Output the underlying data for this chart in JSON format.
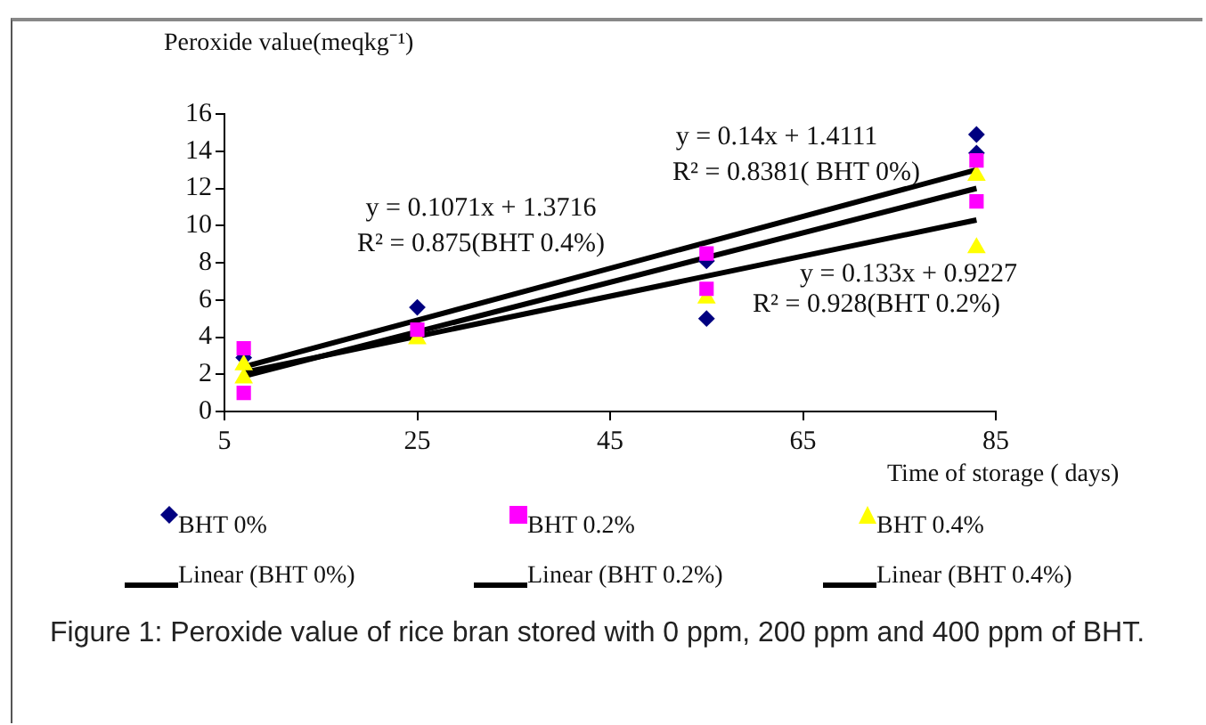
{
  "chart_data": {
    "type": "scatter",
    "xlabel": "Time of storage ( days)",
    "ylabel": "Peroxide value(meqkg⁻¹)",
    "xlim": [
      5,
      85
    ],
    "xticks": [
      5,
      25,
      45,
      65,
      85
    ],
    "ylim": [
      0,
      16
    ],
    "yticks": [
      0,
      2,
      4,
      6,
      8,
      10,
      12,
      14,
      16
    ],
    "grid": false,
    "legend": "bottom",
    "series": [
      {
        "name": "BHT 0%",
        "type": "scatter",
        "marker": "diamond",
        "color": "#000080",
        "x": [
          7,
          25,
          55,
          55,
          83,
          83
        ],
        "values": [
          2.9,
          5.6,
          8.1,
          5.0,
          14.9,
          13.9
        ]
      },
      {
        "name": "BHT 0.2%",
        "type": "scatter",
        "marker": "square",
        "color": "#ff00ff",
        "x": [
          7,
          7,
          25,
          55,
          55,
          83,
          83
        ],
        "values": [
          3.4,
          1.0,
          4.4,
          8.5,
          6.6,
          13.5,
          11.3
        ]
      },
      {
        "name": "BHT 0.4%",
        "type": "scatter",
        "marker": "triangle",
        "color": "#ffff00",
        "x": [
          7,
          7,
          25,
          55,
          83,
          83
        ],
        "values": [
          2.5,
          1.8,
          3.9,
          6.1,
          12.7,
          8.8
        ]
      },
      {
        "name": "Linear (BHT 0%)",
        "type": "line",
        "marker": "none",
        "color": "#000000",
        "x": [
          7,
          83
        ],
        "values": [
          2.4,
          13.0
        ]
      },
      {
        "name": "Linear (BHT 0.2%)",
        "type": "line",
        "marker": "none",
        "color": "#000000",
        "x": [
          7,
          83
        ],
        "values": [
          1.9,
          12.0
        ]
      },
      {
        "name": "Linear (BHT 0.4%)",
        "type": "line",
        "marker": "none",
        "color": "#000000",
        "x": [
          7,
          83
        ],
        "values": [
          2.1,
          10.3
        ]
      }
    ],
    "annotations": [
      "y = 0.14x + 1.4111",
      "R² = 0.8381( BHT 0%)",
      "y = 0.1071x + 1.3716",
      "R² = 0.875(BHT 0.4%)",
      "y = 0.133x + 0.9227",
      "R² = 0.928(BHT 0.2%)",
      "Figure 1: Peroxide value of rice bran stored with 0 ppm, 200 ppm and 400 ppm of BHT."
    ]
  }
}
